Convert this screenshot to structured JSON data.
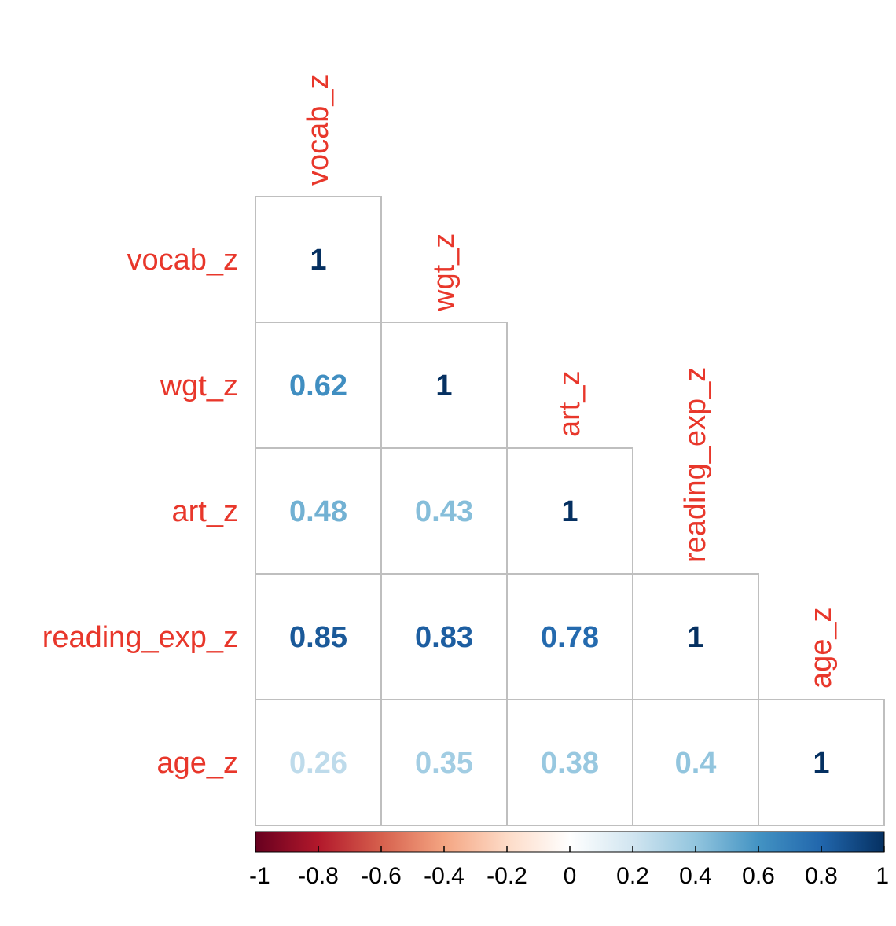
{
  "chart_data": {
    "type": "heatmap",
    "subtype": "correlation-matrix-lower-triangle",
    "title": "",
    "variables": [
      "vocab_z",
      "wgt_z",
      "art_z",
      "reading_exp_z",
      "age_z"
    ],
    "matrix": [
      [
        1,
        null,
        null,
        null,
        null
      ],
      [
        0.62,
        1,
        null,
        null,
        null
      ],
      [
        0.48,
        0.43,
        1,
        null,
        null
      ],
      [
        0.85,
        0.83,
        0.78,
        1,
        null
      ],
      [
        0.26,
        0.35,
        0.38,
        0.4,
        1
      ]
    ],
    "value_labels": [
      [
        "1",
        "",
        "",
        "",
        ""
      ],
      [
        "0.62",
        "1",
        "",
        "",
        ""
      ],
      [
        "0.48",
        "0.43",
        "1",
        "",
        ""
      ],
      [
        "0.85",
        "0.83",
        "0.78",
        "1",
        ""
      ],
      [
        "0.26",
        "0.35",
        "0.38",
        "0.4",
        "1"
      ]
    ],
    "color_scale": {
      "range": [
        -1,
        1
      ],
      "ticks": [
        -1,
        -0.8,
        -0.6,
        -0.4,
        -0.2,
        0,
        0.2,
        0.4,
        0.6,
        0.8,
        1
      ],
      "tick_labels": [
        "-1",
        "-0.8",
        "-0.6",
        "-0.4",
        "-0.2",
        "0",
        "0.2",
        "0.4",
        "0.6",
        "0.8",
        "1"
      ],
      "colors": [
        "#67001f",
        "#b2182b",
        "#d6604d",
        "#f4a582",
        "#fddbc7",
        "#ffffff",
        "#d1e5f0",
        "#92c5de",
        "#4393c3",
        "#2166ac",
        "#053061"
      ],
      "legend_position": "bottom"
    },
    "label_color": "#e8372b",
    "grid_color": "#bfbfbf",
    "background": "#ffffff"
  }
}
